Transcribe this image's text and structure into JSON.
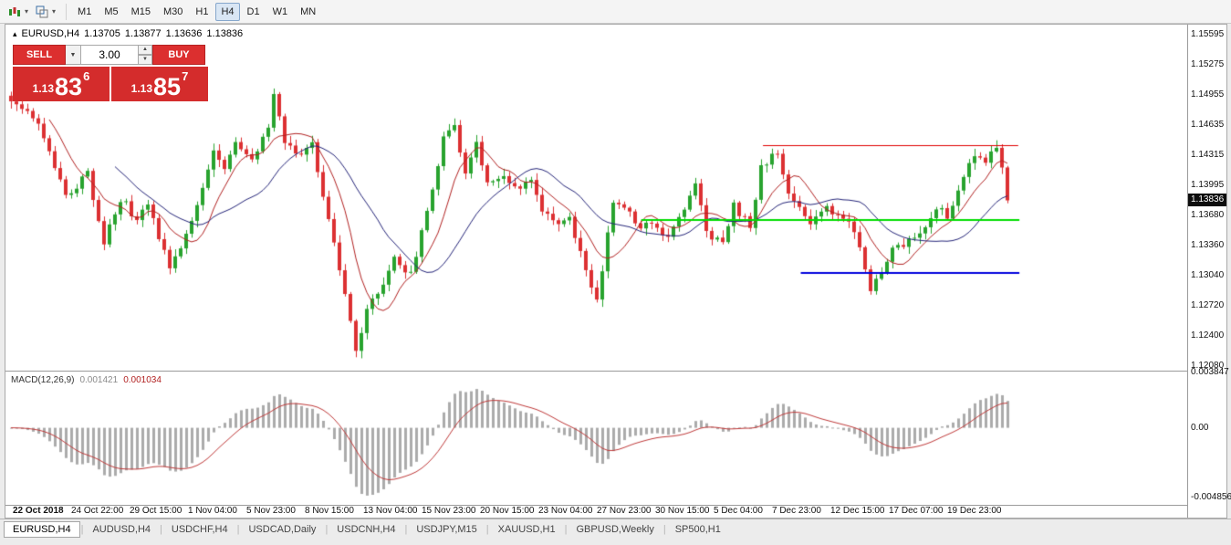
{
  "toolbar": {
    "timeframes": [
      {
        "label": "M1",
        "active": false
      },
      {
        "label": "M5",
        "active": false
      },
      {
        "label": "M15",
        "active": false
      },
      {
        "label": "M30",
        "active": false
      },
      {
        "label": "H1",
        "active": false
      },
      {
        "label": "H4",
        "active": true
      },
      {
        "label": "D1",
        "active": false
      },
      {
        "label": "W1",
        "active": false
      },
      {
        "label": "MN",
        "active": false
      }
    ]
  },
  "chart": {
    "header": {
      "marker": "▴",
      "symbol": "EURUSD,H4",
      "open": "1.13705",
      "high": "1.13877",
      "low": "1.13636",
      "close": "1.13836"
    },
    "trade_panel": {
      "sell_label": "SELL",
      "buy_label": "BUY",
      "volume": "3.00",
      "dropdown_icon": "▼",
      "spin_up_icon": "▲",
      "spin_down_icon": "▼",
      "sell_price": {
        "prefix": "1.13",
        "big": "83",
        "sup": "6"
      },
      "buy_price": {
        "prefix": "1.13",
        "big": "85",
        "sup": "7"
      }
    },
    "current_price": "1.13836"
  },
  "macd_panel": {
    "name": "MACD(12,26,9)",
    "main_value": "0.001421",
    "signal_value": "0.001034"
  },
  "tabs": [
    {
      "label": "EURUSD,H4",
      "active": true
    },
    {
      "label": "AUDUSD,H4",
      "active": false
    },
    {
      "label": "USDCHF,H4",
      "active": false
    },
    {
      "label": "USDCAD,Daily",
      "active": false
    },
    {
      "label": "USDCNH,H4",
      "active": false
    },
    {
      "label": "USDJPY,M15",
      "active": false
    },
    {
      "label": "XAUUSD,H1",
      "active": false
    },
    {
      "label": "GBPUSD,Weekly",
      "active": false
    },
    {
      "label": "SP500,H1",
      "active": false
    }
  ],
  "chart_data": {
    "type": "candlestick",
    "title": "EURUSD,H4",
    "price_axis": {
      "min": 1.1203,
      "max": 1.157,
      "labels": [
        "1.15595",
        "1.15275",
        "1.14955",
        "1.14635",
        "1.14315",
        "1.13995",
        "1.13680",
        "1.13360",
        "1.13040",
        "1.12720",
        "1.12400",
        "1.12080"
      ]
    },
    "current_price": 1.13836,
    "candle_count": 183,
    "anchors": [
      [
        0,
        1.1485
      ],
      [
        3,
        1.1478
      ],
      [
        5,
        1.1468
      ],
      [
        7,
        1.144
      ],
      [
        10,
        1.1385
      ],
      [
        12,
        1.14
      ],
      [
        14,
        1.1413
      ],
      [
        17,
        1.1338
      ],
      [
        20,
        1.1386
      ],
      [
        23,
        1.1363
      ],
      [
        25,
        1.1381
      ],
      [
        27,
        1.1345
      ],
      [
        29,
        1.131
      ],
      [
        32,
        1.135
      ],
      [
        35,
        1.1396
      ],
      [
        37,
        1.1438
      ],
      [
        39,
        1.1416
      ],
      [
        41,
        1.1442
      ],
      [
        44,
        1.1425
      ],
      [
        47,
        1.1465
      ],
      [
        48,
        1.1497
      ],
      [
        50,
        1.1442
      ],
      [
        53,
        1.1428
      ],
      [
        55,
        1.1445
      ],
      [
        57,
        1.1385
      ],
      [
        60,
        1.131
      ],
      [
        63,
        1.1222
      ],
      [
        65,
        1.1272
      ],
      [
        68,
        1.129
      ],
      [
        70,
        1.1322
      ],
      [
        73,
        1.1305
      ],
      [
        76,
        1.137
      ],
      [
        79,
        1.145
      ],
      [
        81,
        1.1462
      ],
      [
        83,
        1.1412
      ],
      [
        85,
        1.1448
      ],
      [
        87,
        1.1402
      ],
      [
        90,
        1.1413
      ],
      [
        92,
        1.1396
      ],
      [
        95,
        1.1408
      ],
      [
        97,
        1.1372
      ],
      [
        100,
        1.1358
      ],
      [
        102,
        1.1367
      ],
      [
        105,
        1.131
      ],
      [
        107,
        1.1277
      ],
      [
        110,
        1.138
      ],
      [
        112,
        1.1377
      ],
      [
        115,
        1.1352
      ],
      [
        117,
        1.1362
      ],
      [
        120,
        1.1346
      ],
      [
        122,
        1.1363
      ],
      [
        125,
        1.1402
      ],
      [
        127,
        1.1347
      ],
      [
        130,
        1.134
      ],
      [
        132,
        1.1377
      ],
      [
        135,
        1.1357
      ],
      [
        137,
        1.142
      ],
      [
        140,
        1.1433
      ],
      [
        142,
        1.1392
      ],
      [
        144,
        1.1377
      ],
      [
        146,
        1.1362
      ],
      [
        149,
        1.1377
      ],
      [
        151,
        1.1367
      ],
      [
        154,
        1.1353
      ],
      [
        157,
        1.1285
      ],
      [
        159,
        1.131
      ],
      [
        161,
        1.133
      ],
      [
        164,
        1.1343
      ],
      [
        166,
        1.1348
      ],
      [
        169,
        1.1377
      ],
      [
        171,
        1.1365
      ],
      [
        174,
        1.1407
      ],
      [
        176,
        1.1431
      ],
      [
        178,
        1.1425
      ],
      [
        180,
        1.1437
      ],
      [
        181,
        1.142
      ],
      [
        182,
        1.13836
      ]
    ],
    "levels": [
      {
        "name": "resistance-line",
        "color": "#e00000",
        "price": 1.1442,
        "x0": 0.641,
        "x1": 0.857,
        "width": 1
      },
      {
        "name": "pivot-line",
        "color": "#00dd00",
        "price": 1.1363,
        "x0": 0.538,
        "x1": 0.858,
        "width": 2
      },
      {
        "name": "support-line",
        "color": "#0000dd",
        "price": 1.1307,
        "x0": 0.673,
        "x1": 0.858,
        "width": 2
      }
    ],
    "moving_averages": [
      {
        "period": 8,
        "color": "#b22222"
      },
      {
        "period": 20,
        "color": "#26267a"
      }
    ],
    "colors": {
      "bull": "#28a32e",
      "bear": "#dc3032",
      "hist": "#ababab",
      "signal": "#c03a3a"
    },
    "macd_axis": {
      "min": -0.00537,
      "max": 0.00392,
      "labels": [
        "0.003847",
        "0.00",
        "-0.004856"
      ]
    },
    "time_labels": [
      "22 Oct 2018",
      "24 Oct 22:00",
      "29 Oct 15:00",
      "1 Nov 04:00",
      "5 Nov 23:00",
      "8 Nov 15:00",
      "13 Nov 04:00",
      "15 Nov 23:00",
      "20 Nov 15:00",
      "23 Nov 04:00",
      "27 Nov 23:00",
      "30 Nov 15:00",
      "5 Dec 04:00",
      "7 Dec 23:00",
      "12 Dec 15:00",
      "17 Dec 07:00",
      "19 Dec 23:00"
    ]
  }
}
